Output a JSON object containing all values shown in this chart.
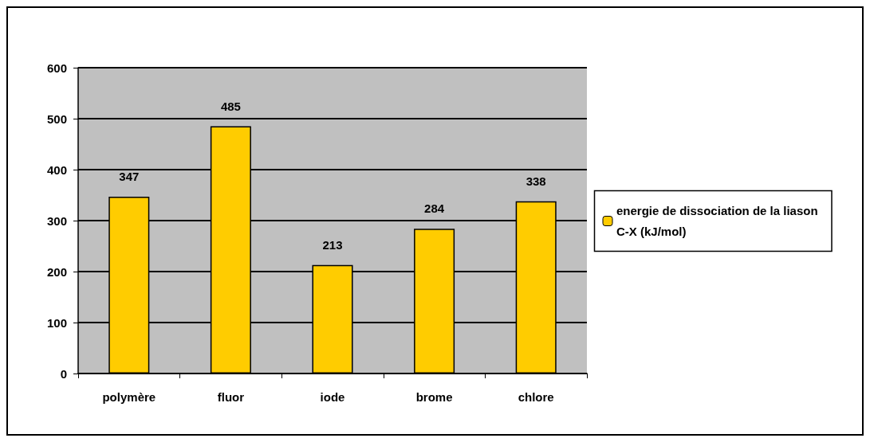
{
  "chart_data": {
    "type": "bar",
    "categories": [
      "polymère",
      "fluor",
      "iode",
      "brome",
      "chlore"
    ],
    "series": [
      {
        "name": "energie de dissociation de la liason C-X (kJ/mol)",
        "color": "#ffcc00",
        "values": [
          347,
          485,
          213,
          284,
          338
        ]
      }
    ],
    "ylim": [
      0,
      600
    ],
    "yticks": [
      0,
      100,
      200,
      300,
      400,
      500,
      600
    ],
    "grid": "y",
    "legend": "right",
    "data_labels": true
  }
}
